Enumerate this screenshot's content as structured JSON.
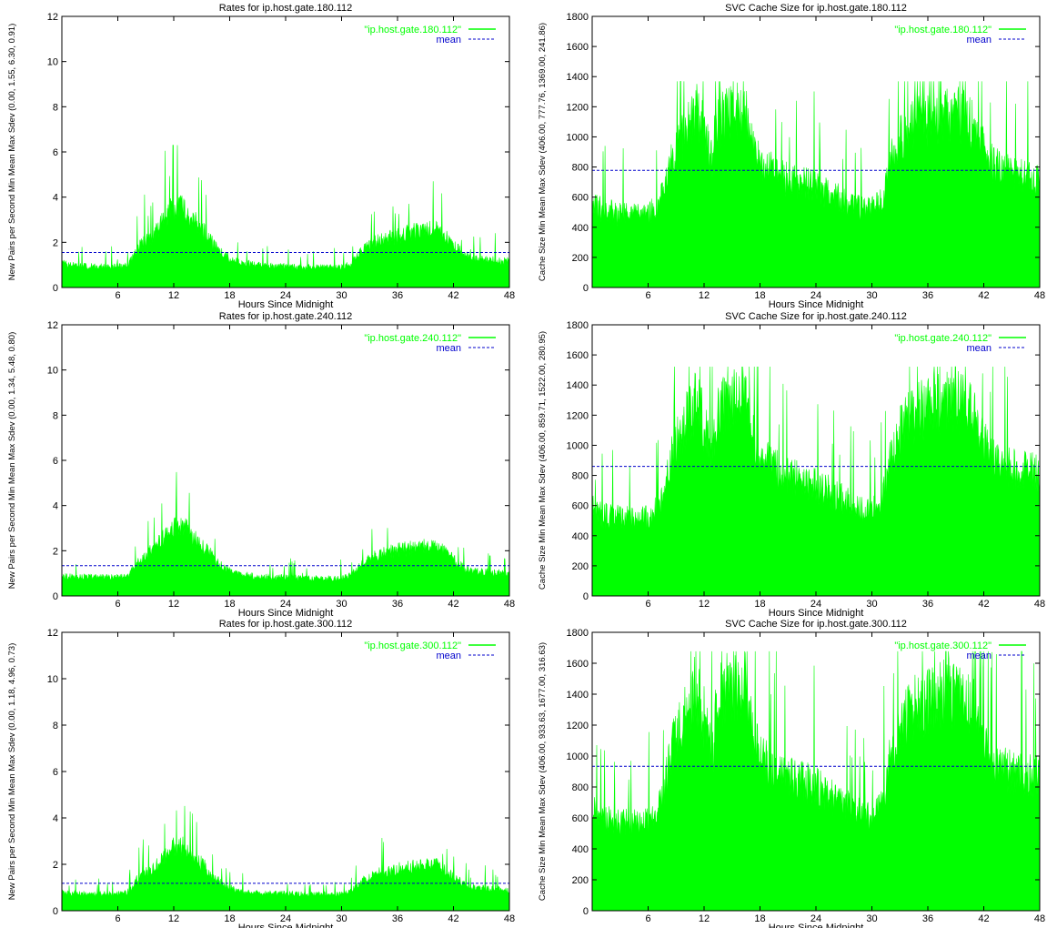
{
  "colors": {
    "series": "#00ff00",
    "mean": "#0000cc",
    "axis": "#000000",
    "background": "#ffffff"
  },
  "chart_data": [
    {
      "type": "area",
      "title": "Rates for ip.host.gate.180.112",
      "xlabel": "Hours Since Midnight",
      "ylabel": "New Pairs per Second Min Mean Max Sdev (0.00, 1.55, 6.30, 0.91)",
      "xlim": [
        0,
        48
      ],
      "ylim": [
        0,
        12
      ],
      "xticks": [
        6,
        12,
        18,
        24,
        30,
        36,
        42,
        48
      ],
      "yticks": [
        0,
        2,
        4,
        6,
        8,
        10,
        12
      ],
      "legend_position": "top-right",
      "series": [
        {
          "name": "\"ip.host.gate.180.112\"",
          "x": [
            0,
            2,
            4,
            6,
            7,
            7.5,
            8,
            9,
            10,
            10.5,
            11,
            11.5,
            12,
            12.5,
            13,
            13.5,
            14,
            14.5,
            15,
            16,
            17,
            18,
            19,
            20,
            22,
            24,
            26,
            28,
            30,
            31,
            31.5,
            32,
            33,
            34,
            35,
            36,
            37,
            38,
            39,
            40,
            41,
            42,
            43,
            44,
            46,
            48
          ],
          "values": [
            1.0,
            0.9,
            0.9,
            0.9,
            0.95,
            1.2,
            1.6,
            2.0,
            2.3,
            2.6,
            2.9,
            3.2,
            3.4,
            3.5,
            3.4,
            3.2,
            2.9,
            2.7,
            2.5,
            2.0,
            1.5,
            1.2,
            1.05,
            1.0,
            0.9,
            0.9,
            0.85,
            0.85,
            0.85,
            1.0,
            1.2,
            1.5,
            1.8,
            2.0,
            2.1,
            2.2,
            2.3,
            2.4,
            2.4,
            2.5,
            2.2,
            1.8,
            1.4,
            1.2,
            1.15,
            1.1
          ],
          "max": 6.3
        },
        {
          "name": "mean",
          "value": 1.55
        }
      ]
    },
    {
      "type": "area",
      "title": "SVC Cache Size for ip.host.gate.180.112",
      "xlabel": "Hours Since Midnight",
      "ylabel": "Cache Size Min Mean Max Sdev (406.00, 777.76, 1369.00, 241.86)",
      "xlim": [
        0,
        48
      ],
      "ylim": [
        0,
        1800
      ],
      "xticks": [
        6,
        12,
        18,
        24,
        30,
        36,
        42,
        48
      ],
      "yticks": [
        0,
        200,
        400,
        600,
        800,
        1000,
        1200,
        1400,
        1600,
        1800
      ],
      "legend_position": "top-right",
      "series": [
        {
          "name": "\"ip.host.gate.180.112\"",
          "x": [
            0,
            1,
            3,
            5,
            6,
            7,
            7.8,
            8.5,
            9.5,
            10.5,
            11.2,
            11.8,
            12.5,
            13,
            13.2,
            14,
            15,
            16,
            16.5,
            17,
            18,
            19,
            20,
            21,
            22,
            23,
            24,
            25,
            26,
            27,
            28,
            29,
            30,
            31,
            31.5,
            32,
            33,
            34,
            35,
            36,
            37,
            38,
            39,
            40,
            41,
            42,
            43,
            44,
            45,
            46,
            47,
            48
          ],
          "values": [
            540,
            500,
            470,
            460,
            470,
            520,
            620,
            820,
            940,
            1060,
            1120,
            1030,
            880,
            820,
            1020,
            1080,
            1120,
            1140,
            1100,
            930,
            790,
            760,
            720,
            690,
            680,
            670,
            640,
            610,
            590,
            560,
            520,
            510,
            510,
            550,
            650,
            800,
            940,
            1020,
            1060,
            1080,
            1100,
            1120,
            1110,
            1090,
            1010,
            880,
            780,
            760,
            740,
            720,
            710,
            700
          ],
          "max": 1369
        },
        {
          "name": "mean",
          "value": 777.76
        }
      ]
    },
    {
      "type": "area",
      "title": "Rates for ip.host.gate.240.112",
      "xlabel": "Hours Since Midnight",
      "ylabel": "New Pairs per Second Min Mean Max Sdev (0.00, 1.34, 5.48, 0.80)",
      "xlim": [
        0,
        48
      ],
      "ylim": [
        0,
        12
      ],
      "xticks": [
        6,
        12,
        18,
        24,
        30,
        36,
        42,
        48
      ],
      "yticks": [
        0,
        2,
        4,
        6,
        8,
        10,
        12
      ],
      "legend_position": "top-right",
      "series": [
        {
          "name": "\"ip.host.gate.240.112\"",
          "x": [
            0,
            2,
            4,
            6,
            7,
            7.5,
            8,
            9,
            10,
            10.5,
            11,
            11.5,
            12,
            12.5,
            13,
            13.5,
            14,
            14.5,
            15,
            16,
            17,
            18,
            19,
            20,
            22,
            24,
            26,
            28,
            30,
            31,
            31.5,
            32,
            33,
            34,
            35,
            36,
            37,
            38,
            39,
            40,
            41,
            42,
            43,
            44,
            46,
            48
          ],
          "values": [
            0.85,
            0.8,
            0.8,
            0.8,
            0.85,
            1.05,
            1.4,
            1.75,
            2.0,
            2.3,
            2.5,
            2.8,
            2.95,
            3.0,
            2.95,
            2.8,
            2.55,
            2.35,
            2.15,
            1.75,
            1.3,
            1.05,
            0.92,
            0.88,
            0.8,
            0.8,
            0.75,
            0.75,
            0.75,
            0.88,
            1.05,
            1.3,
            1.55,
            1.75,
            1.85,
            1.95,
            2.0,
            2.05,
            2.1,
            2.15,
            1.9,
            1.55,
            1.2,
            1.05,
            1.0,
            0.95
          ],
          "max": 5.48
        },
        {
          "name": "mean",
          "value": 1.34
        }
      ]
    },
    {
      "type": "area",
      "title": "SVC Cache Size for ip.host.gate.240.112",
      "xlabel": "Hours Since Midnight",
      "ylabel": "Cache Size Min Mean Max Sdev (406.00, 859.71, 1522.00, 280.95)",
      "xlim": [
        0,
        48
      ],
      "ylim": [
        0,
        1800
      ],
      "xticks": [
        6,
        12,
        18,
        24,
        30,
        36,
        42,
        48
      ],
      "yticks": [
        0,
        200,
        400,
        600,
        800,
        1000,
        1200,
        1400,
        1600,
        1800
      ],
      "legend_position": "top-right",
      "series": [
        {
          "name": "\"ip.host.gate.240.112\"",
          "x": [
            0,
            1,
            3,
            5,
            6,
            7,
            7.8,
            8.5,
            9.5,
            10.5,
            11.2,
            11.8,
            12.5,
            13,
            13.2,
            14,
            15,
            16,
            16.5,
            17,
            18,
            19,
            20,
            21,
            22,
            23,
            24,
            25,
            26,
            27,
            28,
            29,
            30,
            31,
            31.5,
            32,
            33,
            34,
            35,
            36,
            37,
            38,
            39,
            40,
            41,
            42,
            43,
            44,
            45,
            46,
            47,
            48
          ],
          "values": [
            560,
            520,
            500,
            490,
            500,
            560,
            680,
            900,
            1040,
            1180,
            1240,
            1140,
            960,
            900,
            1140,
            1220,
            1260,
            1280,
            1240,
            1040,
            880,
            840,
            800,
            770,
            760,
            740,
            710,
            680,
            650,
            620,
            570,
            550,
            540,
            590,
            700,
            880,
            1040,
            1140,
            1180,
            1200,
            1230,
            1250,
            1240,
            1220,
            1130,
            980,
            860,
            830,
            810,
            800,
            790,
            780
          ],
          "max": 1522
        },
        {
          "name": "mean",
          "value": 859.71
        }
      ]
    },
    {
      "type": "area",
      "title": "Rates for ip.host.gate.300.112",
      "xlabel": "Hours Since Midnight",
      "ylabel": "New Pairs per Second Min Mean Max Sdev (0.00, 1.18, 4.96, 0.73)",
      "xlim": [
        0,
        48
      ],
      "ylim": [
        0,
        12
      ],
      "xticks": [
        6,
        12,
        18,
        24,
        30,
        36,
        42,
        48
      ],
      "yticks": [
        0,
        2,
        4,
        6,
        8,
        10,
        12
      ],
      "legend_position": "top-right",
      "series": [
        {
          "name": "\"ip.host.gate.300.112\"",
          "x": [
            0,
            2,
            4,
            6,
            7,
            7.5,
            8,
            9,
            10,
            10.5,
            11,
            11.5,
            12,
            12.5,
            13,
            13.5,
            14,
            14.5,
            15,
            16,
            17,
            18,
            19,
            20,
            22,
            24,
            26,
            28,
            30,
            31,
            31.5,
            32,
            33,
            34,
            35,
            36,
            37,
            38,
            39,
            40,
            41,
            42,
            43,
            44,
            46,
            48
          ],
          "values": [
            0.75,
            0.7,
            0.7,
            0.7,
            0.75,
            0.95,
            1.25,
            1.55,
            1.8,
            2.05,
            2.25,
            2.5,
            2.65,
            2.7,
            2.65,
            2.5,
            2.3,
            2.1,
            1.95,
            1.55,
            1.15,
            0.95,
            0.82,
            0.78,
            0.72,
            0.72,
            0.68,
            0.68,
            0.68,
            0.8,
            0.95,
            1.15,
            1.4,
            1.55,
            1.65,
            1.75,
            1.8,
            1.85,
            1.9,
            1.95,
            1.7,
            1.4,
            1.1,
            0.95,
            0.9,
            0.85
          ],
          "max": 4.96
        },
        {
          "name": "mean",
          "value": 1.18
        }
      ]
    },
    {
      "type": "area",
      "title": "SVC Cache Size for ip.host.gate.300.112",
      "xlabel": "Hours Since Midnight",
      "ylabel": "Cache Size Min Mean Max Sdev (406.00, 933.63, 1677.00, 316.63)",
      "xlim": [
        0,
        48
      ],
      "ylim": [
        0,
        1800
      ],
      "xticks": [
        6,
        12,
        18,
        24,
        30,
        36,
        42,
        48
      ],
      "yticks": [
        0,
        200,
        400,
        600,
        800,
        1000,
        1200,
        1400,
        1600,
        1800
      ],
      "legend_position": "top-right",
      "series": [
        {
          "name": "\"ip.host.gate.300.112\"",
          "x": [
            0,
            1,
            3,
            5,
            6,
            7,
            7.8,
            8.5,
            9.5,
            10.5,
            11.2,
            11.8,
            12.5,
            13,
            13.2,
            14,
            15,
            16,
            16.5,
            17,
            18,
            19,
            20,
            21,
            22,
            23,
            24,
            25,
            26,
            27,
            28,
            29,
            30,
            31,
            31.5,
            32,
            33,
            34,
            35,
            36,
            37,
            38,
            39,
            40,
            41,
            42,
            43,
            44,
            45,
            46,
            47,
            48
          ],
          "values": [
            620,
            580,
            550,
            540,
            550,
            610,
            760,
            1000,
            1160,
            1320,
            1380,
            1260,
            1060,
            1000,
            1270,
            1360,
            1400,
            1420,
            1380,
            1160,
            960,
            900,
            860,
            830,
            820,
            800,
            770,
            730,
            700,
            670,
            620,
            600,
            580,
            640,
            760,
            960,
            1140,
            1250,
            1290,
            1310,
            1340,
            1360,
            1350,
            1330,
            1230,
            1060,
            920,
            880,
            860,
            850,
            840,
            830
          ],
          "max": 1677
        },
        {
          "name": "mean",
          "value": 933.63
        }
      ]
    }
  ]
}
